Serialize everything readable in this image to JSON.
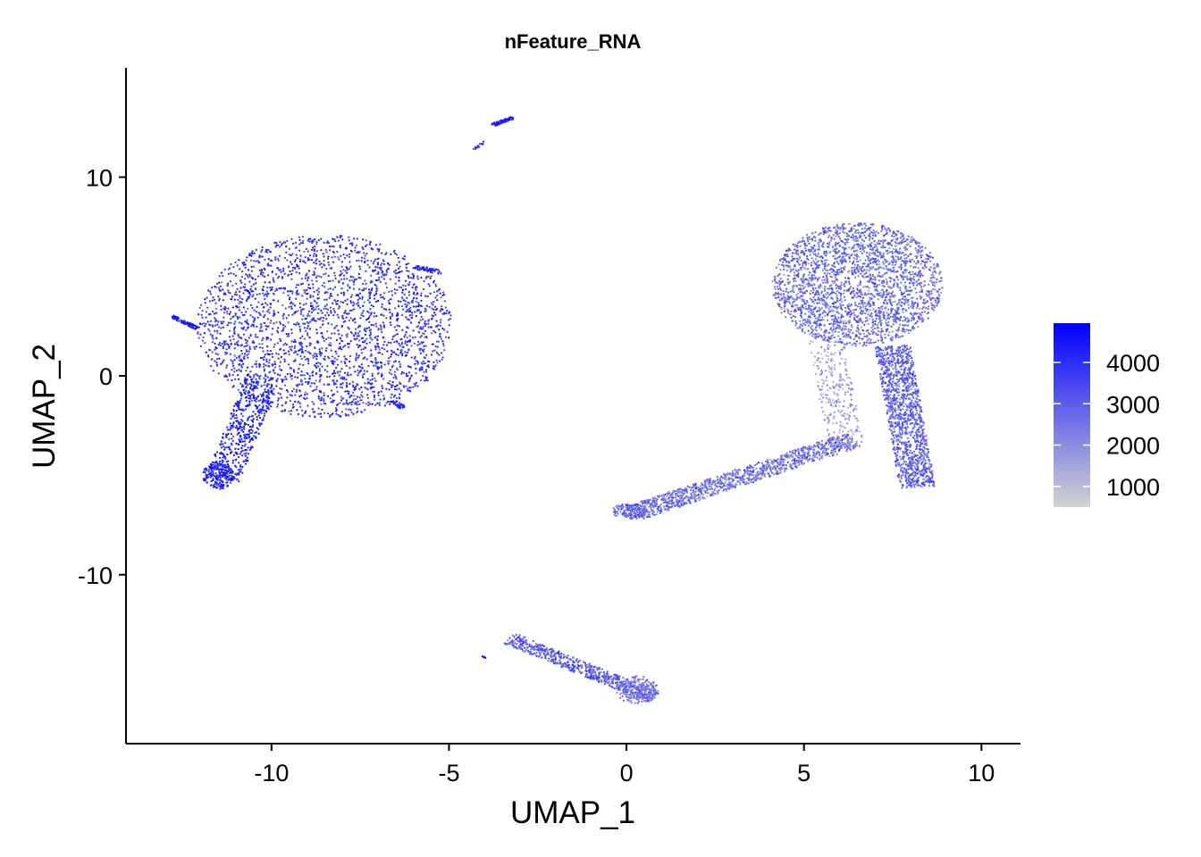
{
  "chart_data": {
    "type": "scatter",
    "title": "nFeature_RNA",
    "xlabel": "UMAP_1",
    "ylabel": "UMAP_2",
    "xlim": [
      -14.1,
      11.1
    ],
    "ylim": [
      -18.5,
      15.5
    ],
    "x_ticks": [
      -10,
      -5,
      0,
      5,
      10
    ],
    "x_tick_labels": [
      "-10",
      "-5",
      "0",
      "5",
      "10"
    ],
    "y_ticks": [
      10,
      0,
      -10
    ],
    "y_tick_labels": [
      "10",
      "0",
      "-10"
    ],
    "grid": false,
    "legend_position": "right",
    "color_scale": {
      "feature": "nFeature_RNA",
      "min": 500,
      "max": 4950,
      "low_color": "#d3d3d3",
      "high_color": "#0000ff",
      "breaks": [
        4000,
        3000,
        2000,
        1000
      ],
      "break_labels": [
        "4000",
        "3000",
        "2000",
        "1000"
      ]
    },
    "clusters": [
      {
        "shape": "blob",
        "center": [
          -8.5,
          2.5
        ],
        "rx": 3.6,
        "ry": 4.6,
        "n": 2600,
        "value_mean": 3950,
        "value_sd": 450
      },
      {
        "shape": "segment",
        "from": [
          -10.2,
          0.0
        ],
        "to": [
          -11.4,
          -5.2
        ],
        "width": 1.0,
        "n": 500,
        "value_mean": 4300,
        "value_sd": 350
      },
      {
        "shape": "blob",
        "center": [
          -11.5,
          -5.0
        ],
        "rx": 0.45,
        "ry": 0.7,
        "n": 180,
        "value_mean": 4300,
        "value_sd": 300
      },
      {
        "shape": "segment",
        "from": [
          -12.8,
          3.0
        ],
        "to": [
          -12.1,
          2.4
        ],
        "width": 0.15,
        "n": 90,
        "value_mean": 4400,
        "value_sd": 200
      },
      {
        "shape": "segment",
        "from": [
          -6.0,
          5.5
        ],
        "to": [
          -5.2,
          5.2
        ],
        "width": 0.2,
        "n": 50,
        "value_mean": 4200,
        "value_sd": 250
      },
      {
        "shape": "segment",
        "from": [
          -6.6,
          -1.2
        ],
        "to": [
          -6.3,
          -1.6
        ],
        "width": 0.2,
        "n": 40,
        "value_mean": 4300,
        "value_sd": 250
      },
      {
        "shape": "segment",
        "from": [
          -3.8,
          12.6
        ],
        "to": [
          -3.2,
          13.0
        ],
        "width": 0.15,
        "n": 90,
        "value_mean": 4300,
        "value_sd": 300
      },
      {
        "shape": "segment",
        "from": [
          -4.3,
          11.4
        ],
        "to": [
          -4.0,
          11.8
        ],
        "width": 0.1,
        "n": 12,
        "value_mean": 4200,
        "value_sd": 250
      },
      {
        "shape": "blob",
        "center": [
          6.5,
          4.6
        ],
        "rx": 2.4,
        "ry": 3.1,
        "n": 2500,
        "value_mean": 2700,
        "value_sd": 550
      },
      {
        "shape": "segment",
        "from": [
          7.5,
          1.5
        ],
        "to": [
          8.2,
          -5.6
        ],
        "width": 1.0,
        "n": 1300,
        "value_mean": 2900,
        "value_sd": 550
      },
      {
        "shape": "segment",
        "from": [
          0.2,
          -6.9
        ],
        "to": [
          6.4,
          -3.2
        ],
        "width": 0.8,
        "n": 1200,
        "value_mean": 2500,
        "value_sd": 650
      },
      {
        "shape": "blob",
        "center": [
          0.1,
          -6.8
        ],
        "rx": 0.5,
        "ry": 0.4,
        "n": 150,
        "value_mean": 2900,
        "value_sd": 450
      },
      {
        "shape": "segment",
        "from": [
          6.2,
          -3.6
        ],
        "to": [
          5.6,
          1.8
        ],
        "width": 1.0,
        "n": 300,
        "value_mean": 1600,
        "value_sd": 500
      },
      {
        "shape": "segment",
        "from": [
          -3.3,
          -13.2
        ],
        "to": [
          0.8,
          -16.2
        ],
        "width": 0.6,
        "n": 650,
        "value_mean": 3000,
        "value_sd": 550
      },
      {
        "shape": "blob",
        "center": [
          0.3,
          -15.8
        ],
        "rx": 0.6,
        "ry": 0.7,
        "n": 220,
        "value_mean": 2500,
        "value_sd": 450
      },
      {
        "shape": "segment",
        "from": [
          -4.1,
          -14.1
        ],
        "to": [
          -3.9,
          -14.2
        ],
        "width": 0.05,
        "n": 6,
        "value_mean": 4400,
        "value_sd": 150
      }
    ]
  }
}
